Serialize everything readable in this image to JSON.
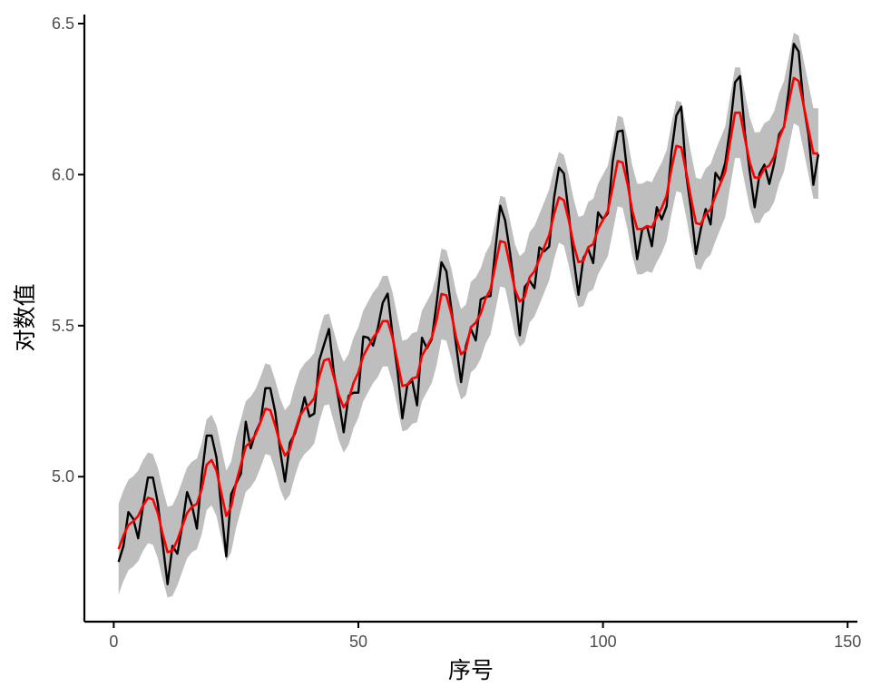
{
  "chart_data": {
    "type": "line",
    "xlabel": "序号",
    "ylabel": "对数值",
    "xlim": [
      -6,
      152
    ],
    "ylim": [
      4.52,
      6.53
    ],
    "x_ticks": [
      0,
      50,
      100,
      150
    ],
    "x_tick_labels": [
      "0",
      "50",
      "100",
      "150"
    ],
    "y_ticks": [
      5.0,
      5.5,
      6.0,
      6.5
    ],
    "y_tick_labels": [
      "5.0",
      "5.5",
      "6.0",
      "6.5"
    ],
    "grid": false,
    "legend": "none",
    "colors": {
      "observed": "#000000",
      "fitted": "#ff0000",
      "band": "#bebebe",
      "axis": "#000000",
      "tick_label": "#4d4d4d"
    },
    "series": [
      {
        "id": "observed",
        "color": "#000000",
        "x_start": 1,
        "values": [
          4.718,
          4.771,
          4.883,
          4.86,
          4.796,
          4.905,
          4.997,
          4.997,
          4.913,
          4.779,
          4.644,
          4.771,
          4.745,
          4.836,
          4.949,
          4.905,
          4.828,
          5.004,
          5.136,
          5.136,
          5.063,
          4.89,
          4.736,
          4.942,
          4.977,
          5.011,
          5.182,
          5.094,
          5.147,
          5.182,
          5.293,
          5.293,
          5.215,
          5.088,
          4.984,
          5.112,
          5.142,
          5.193,
          5.263,
          5.199,
          5.209,
          5.384,
          5.438,
          5.489,
          5.342,
          5.252,
          5.147,
          5.268,
          5.278,
          5.278,
          5.464,
          5.46,
          5.434,
          5.493,
          5.576,
          5.606,
          5.468,
          5.352,
          5.193,
          5.303,
          5.318,
          5.236,
          5.46,
          5.425,
          5.455,
          5.576,
          5.71,
          5.68,
          5.557,
          5.434,
          5.313,
          5.434,
          5.489,
          5.451,
          5.587,
          5.595,
          5.598,
          5.753,
          5.897,
          5.849,
          5.743,
          5.613,
          5.468,
          5.628,
          5.649,
          5.624,
          5.759,
          5.746,
          5.762,
          5.924,
          6.023,
          6.004,
          5.872,
          5.724,
          5.602,
          5.724,
          5.753,
          5.707,
          5.875,
          5.852,
          5.872,
          6.045,
          6.142,
          6.146,
          6.001,
          5.849,
          5.72,
          5.817,
          5.829,
          5.763,
          5.892,
          5.852,
          5.895,
          6.075,
          6.196,
          6.225,
          6.001,
          5.883,
          5.737,
          5.82,
          5.886,
          5.835,
          6.006,
          5.981,
          6.04,
          6.157,
          6.306,
          6.326,
          6.138,
          6.009,
          5.892,
          6.004,
          6.033,
          5.969,
          6.038,
          6.133,
          6.157,
          6.282,
          6.433,
          6.407,
          6.23,
          6.133,
          5.966,
          6.068
        ]
      },
      {
        "id": "fitted",
        "color": "#ff0000",
        "x_start": 1,
        "values": [
          4.76,
          4.805,
          4.84,
          4.852,
          4.87,
          4.905,
          4.93,
          4.925,
          4.88,
          4.81,
          4.75,
          4.755,
          4.79,
          4.835,
          4.88,
          4.9,
          4.91,
          4.96,
          5.04,
          5.055,
          5.02,
          4.945,
          4.87,
          4.9,
          4.98,
          5.04,
          5.1,
          5.115,
          5.14,
          5.18,
          5.225,
          5.22,
          5.17,
          5.11,
          5.07,
          5.09,
          5.15,
          5.2,
          5.225,
          5.24,
          5.26,
          5.33,
          5.385,
          5.39,
          5.33,
          5.27,
          5.23,
          5.255,
          5.31,
          5.345,
          5.4,
          5.43,
          5.46,
          5.48,
          5.515,
          5.515,
          5.46,
          5.38,
          5.3,
          5.305,
          5.325,
          5.33,
          5.4,
          5.43,
          5.46,
          5.52,
          5.605,
          5.6,
          5.54,
          5.46,
          5.405,
          5.42,
          5.495,
          5.51,
          5.54,
          5.59,
          5.62,
          5.7,
          5.78,
          5.775,
          5.7,
          5.62,
          5.58,
          5.595,
          5.66,
          5.68,
          5.72,
          5.76,
          5.8,
          5.87,
          5.925,
          5.915,
          5.85,
          5.77,
          5.71,
          5.715,
          5.76,
          5.77,
          5.82,
          5.85,
          5.88,
          5.96,
          6.045,
          6.04,
          5.97,
          5.88,
          5.82,
          5.82,
          5.83,
          5.825,
          5.86,
          5.89,
          5.93,
          6.02,
          6.095,
          6.09,
          6.01,
          5.92,
          5.84,
          5.835,
          5.87,
          5.885,
          5.93,
          5.97,
          6.01,
          6.11,
          6.205,
          6.205,
          6.12,
          6.04,
          5.99,
          5.99,
          6.02,
          6.03,
          6.06,
          6.12,
          6.16,
          6.24,
          6.32,
          6.31,
          6.23,
          6.15,
          6.07,
          6.07
        ]
      }
    ],
    "band": {
      "color": "#bebebe",
      "x_start": 1,
      "lower": [
        4.61,
        4.655,
        4.69,
        4.702,
        4.72,
        4.755,
        4.78,
        4.775,
        4.73,
        4.66,
        4.6,
        4.605,
        4.64,
        4.685,
        4.73,
        4.75,
        4.76,
        4.81,
        4.89,
        4.905,
        4.87,
        4.795,
        4.72,
        4.75,
        4.83,
        4.89,
        4.95,
        4.965,
        4.99,
        5.03,
        5.075,
        5.07,
        5.02,
        4.96,
        4.92,
        4.94,
        5.0,
        5.05,
        5.075,
        5.09,
        5.11,
        5.18,
        5.235,
        5.24,
        5.18,
        5.12,
        5.08,
        5.105,
        5.16,
        5.195,
        5.25,
        5.28,
        5.31,
        5.33,
        5.365,
        5.365,
        5.31,
        5.23,
        5.15,
        5.155,
        5.175,
        5.18,
        5.25,
        5.28,
        5.31,
        5.37,
        5.455,
        5.45,
        5.39,
        5.31,
        5.255,
        5.27,
        5.345,
        5.36,
        5.39,
        5.44,
        5.47,
        5.55,
        5.63,
        5.625,
        5.55,
        5.47,
        5.43,
        5.445,
        5.51,
        5.53,
        5.57,
        5.61,
        5.65,
        5.72,
        5.775,
        5.765,
        5.7,
        5.62,
        5.56,
        5.565,
        5.61,
        5.62,
        5.67,
        5.7,
        5.73,
        5.81,
        5.895,
        5.89,
        5.82,
        5.73,
        5.67,
        5.67,
        5.68,
        5.675,
        5.71,
        5.74,
        5.78,
        5.87,
        5.945,
        5.94,
        5.86,
        5.77,
        5.69,
        5.685,
        5.72,
        5.735,
        5.78,
        5.82,
        5.86,
        5.96,
        6.055,
        6.055,
        5.97,
        5.89,
        5.84,
        5.84,
        5.87,
        5.88,
        5.91,
        5.97,
        6.01,
        6.09,
        6.17,
        6.16,
        6.08,
        6.0,
        5.92,
        5.92
      ],
      "upper": [
        4.91,
        4.955,
        4.99,
        5.002,
        5.02,
        5.055,
        5.08,
        5.075,
        5.03,
        4.96,
        4.9,
        4.905,
        4.94,
        4.985,
        5.03,
        5.05,
        5.06,
        5.11,
        5.19,
        5.205,
        5.17,
        5.095,
        5.02,
        5.05,
        5.13,
        5.19,
        5.25,
        5.265,
        5.29,
        5.33,
        5.375,
        5.37,
        5.32,
        5.26,
        5.22,
        5.24,
        5.3,
        5.35,
        5.375,
        5.39,
        5.41,
        5.48,
        5.535,
        5.54,
        5.48,
        5.42,
        5.38,
        5.405,
        5.46,
        5.495,
        5.55,
        5.58,
        5.61,
        5.63,
        5.665,
        5.665,
        5.61,
        5.53,
        5.45,
        5.455,
        5.475,
        5.48,
        5.55,
        5.58,
        5.61,
        5.67,
        5.755,
        5.75,
        5.69,
        5.61,
        5.555,
        5.57,
        5.645,
        5.66,
        5.69,
        5.74,
        5.77,
        5.85,
        5.93,
        5.925,
        5.85,
        5.77,
        5.73,
        5.745,
        5.81,
        5.83,
        5.87,
        5.91,
        5.95,
        6.02,
        6.075,
        6.065,
        6.0,
        5.92,
        5.86,
        5.865,
        5.91,
        5.92,
        5.97,
        6.0,
        6.03,
        6.11,
        6.195,
        6.19,
        6.12,
        6.03,
        5.97,
        5.97,
        5.98,
        5.975,
        6.01,
        6.04,
        6.08,
        6.17,
        6.245,
        6.24,
        6.16,
        6.07,
        5.99,
        5.985,
        6.02,
        6.035,
        6.08,
        6.12,
        6.16,
        6.26,
        6.355,
        6.355,
        6.27,
        6.19,
        6.14,
        6.14,
        6.17,
        6.18,
        6.21,
        6.27,
        6.31,
        6.39,
        6.47,
        6.46,
        6.38,
        6.3,
        6.22,
        6.22
      ]
    }
  }
}
